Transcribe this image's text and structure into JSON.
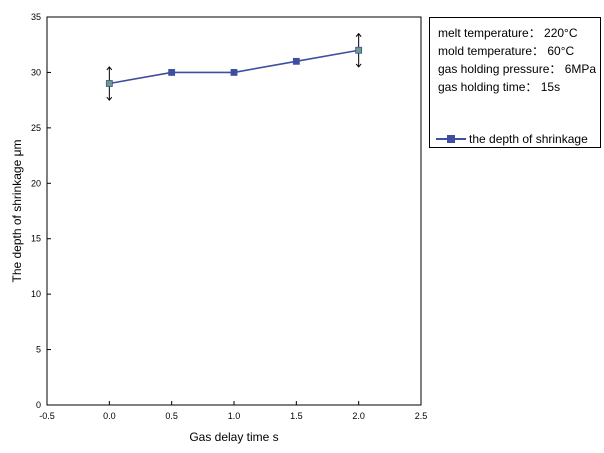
{
  "chart_data": {
    "type": "line",
    "xlabel": "Gas delay time s",
    "ylabel": "The depth of shrinkage μm",
    "xlim": [
      -0.5,
      2.5
    ],
    "ylim": [
      0,
      35
    ],
    "x_ticks": [
      "-0.5",
      "0.0",
      "0.5",
      "1.0",
      "1.5",
      "2.0",
      "2.5"
    ],
    "y_ticks": [
      "0",
      "5",
      "10",
      "15",
      "20",
      "25",
      "30",
      "35"
    ],
    "x": [
      0.0,
      0.5,
      1.0,
      1.5,
      2.0
    ],
    "series": [
      {
        "name": "the depth of shrinkage",
        "values": [
          29,
          30,
          30,
          31,
          32
        ],
        "error": [
          1.5,
          0,
          0,
          0,
          1.5
        ],
        "color": "#3f4fa0"
      }
    ],
    "grid": false,
    "legend_position": "top-right, outside plot"
  },
  "legend": {
    "notes": [
      "melt temperature： 220°C",
      "mold temperature： 60°C",
      "gas holding pressure： 6MPa",
      "gas holding time： 15s"
    ]
  }
}
